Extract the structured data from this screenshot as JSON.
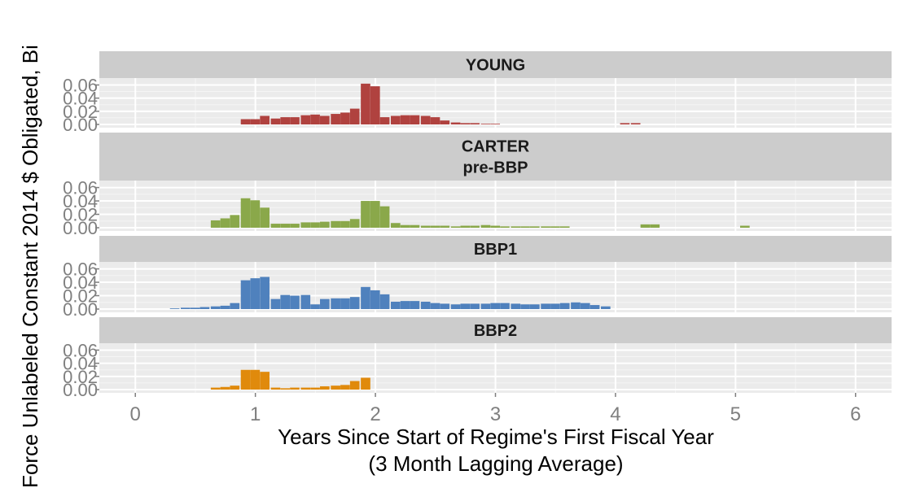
{
  "chart_data": {
    "type": "bar",
    "chart_kind": "faceted histogram",
    "xlabel": "Years Since Start of Regime's First Fiscal Year",
    "xlabel_line2": "(3 Month Lagging Average)",
    "ylabel": "Force Unlabeled Constant 2014 $ Obligated, Bi",
    "xlim": [
      -0.3,
      6.3
    ],
    "ylim": [
      0,
      0.068
    ],
    "x_ticks": [
      0,
      1,
      2,
      3,
      4,
      5,
      6
    ],
    "x_tick_labels": [
      "0",
      "1",
      "2",
      "3",
      "4",
      "5",
      "6"
    ],
    "y_ticks": [
      0,
      0.02,
      0.04,
      0.06
    ],
    "y_tick_labels": [
      "0.00",
      "0.02",
      "0.04",
      "0.06"
    ],
    "bin_width": 0.0833,
    "grid": true,
    "panel_background": "#ebebeb",
    "strip_background": "#cccccc",
    "facets": [
      {
        "strip": [
          "YOUNG"
        ],
        "color": "#b0423f",
        "bins": [
          [
            0.92,
            0.008
          ],
          [
            1.0,
            0.008
          ],
          [
            1.08,
            0.013
          ],
          [
            1.17,
            0.009
          ],
          [
            1.25,
            0.011
          ],
          [
            1.33,
            0.011
          ],
          [
            1.42,
            0.014
          ],
          [
            1.5,
            0.015
          ],
          [
            1.58,
            0.013
          ],
          [
            1.67,
            0.016
          ],
          [
            1.75,
            0.018
          ],
          [
            1.83,
            0.024
          ],
          [
            1.92,
            0.062
          ],
          [
            2.0,
            0.058
          ],
          [
            2.08,
            0.011
          ],
          [
            2.17,
            0.013
          ],
          [
            2.25,
            0.014
          ],
          [
            2.33,
            0.014
          ],
          [
            2.42,
            0.013
          ],
          [
            2.5,
            0.011
          ],
          [
            2.58,
            0.006
          ],
          [
            2.67,
            0.003
          ],
          [
            2.75,
            0.002
          ],
          [
            2.83,
            0.002
          ],
          [
            2.92,
            0.001
          ],
          [
            3.0,
            0.001
          ],
          [
            4.08,
            0.002
          ],
          [
            4.17,
            0.002
          ]
        ]
      },
      {
        "strip": [
          "CARTER",
          "pre-BBP"
        ],
        "color": "#8aa84a",
        "bins": [
          [
            0.67,
            0.011
          ],
          [
            0.75,
            0.014
          ],
          [
            0.83,
            0.019
          ],
          [
            0.92,
            0.044
          ],
          [
            1.0,
            0.041
          ],
          [
            1.08,
            0.03
          ],
          [
            1.17,
            0.006
          ],
          [
            1.25,
            0.006
          ],
          [
            1.33,
            0.006
          ],
          [
            1.42,
            0.008
          ],
          [
            1.5,
            0.008
          ],
          [
            1.58,
            0.009
          ],
          [
            1.67,
            0.01
          ],
          [
            1.75,
            0.01
          ],
          [
            1.83,
            0.013
          ],
          [
            1.92,
            0.04
          ],
          [
            2.0,
            0.04
          ],
          [
            2.08,
            0.032
          ],
          [
            2.17,
            0.007
          ],
          [
            2.25,
            0.004
          ],
          [
            2.33,
            0.004
          ],
          [
            2.42,
            0.003
          ],
          [
            2.5,
            0.003
          ],
          [
            2.58,
            0.003
          ],
          [
            2.67,
            0.002
          ],
          [
            2.75,
            0.003
          ],
          [
            2.83,
            0.003
          ],
          [
            2.92,
            0.004
          ],
          [
            3.0,
            0.003
          ],
          [
            3.08,
            0.002
          ],
          [
            3.17,
            0.002
          ],
          [
            3.25,
            0.002
          ],
          [
            3.33,
            0.002
          ],
          [
            3.42,
            0.002
          ],
          [
            3.5,
            0.002
          ],
          [
            3.58,
            0.002
          ],
          [
            4.25,
            0.005
          ],
          [
            4.33,
            0.005
          ],
          [
            5.08,
            0.003
          ]
        ]
      },
      {
        "strip": [
          "BBP1"
        ],
        "color": "#4f81bd",
        "bins": [
          [
            0.33,
            0.001
          ],
          [
            0.42,
            0.002
          ],
          [
            0.5,
            0.002
          ],
          [
            0.58,
            0.003
          ],
          [
            0.67,
            0.004
          ],
          [
            0.75,
            0.005
          ],
          [
            0.83,
            0.009
          ],
          [
            0.92,
            0.043
          ],
          [
            1.0,
            0.046
          ],
          [
            1.08,
            0.048
          ],
          [
            1.17,
            0.015
          ],
          [
            1.25,
            0.021
          ],
          [
            1.33,
            0.02
          ],
          [
            1.42,
            0.021
          ],
          [
            1.5,
            0.007
          ],
          [
            1.58,
            0.015
          ],
          [
            1.67,
            0.016
          ],
          [
            1.75,
            0.016
          ],
          [
            1.83,
            0.018
          ],
          [
            1.92,
            0.033
          ],
          [
            2.0,
            0.028
          ],
          [
            2.08,
            0.022
          ],
          [
            2.17,
            0.011
          ],
          [
            2.25,
            0.012
          ],
          [
            2.33,
            0.012
          ],
          [
            2.42,
            0.011
          ],
          [
            2.5,
            0.009
          ],
          [
            2.58,
            0.008
          ],
          [
            2.67,
            0.007
          ],
          [
            2.75,
            0.008
          ],
          [
            2.83,
            0.008
          ],
          [
            2.92,
            0.008
          ],
          [
            3.0,
            0.009
          ],
          [
            3.08,
            0.009
          ],
          [
            3.17,
            0.008
          ],
          [
            3.25,
            0.007
          ],
          [
            3.33,
            0.007
          ],
          [
            3.42,
            0.008
          ],
          [
            3.5,
            0.008
          ],
          [
            3.58,
            0.009
          ],
          [
            3.67,
            0.01
          ],
          [
            3.75,
            0.009
          ],
          [
            3.83,
            0.006
          ],
          [
            3.92,
            0.004
          ]
        ]
      },
      {
        "strip": [
          "BBP2"
        ],
        "color": "#e08a0c",
        "bins": [
          [
            0.67,
            0.003
          ],
          [
            0.75,
            0.004
          ],
          [
            0.83,
            0.006
          ],
          [
            0.92,
            0.03
          ],
          [
            1.0,
            0.03
          ],
          [
            1.08,
            0.027
          ],
          [
            1.17,
            0.003
          ],
          [
            1.25,
            0.002
          ],
          [
            1.33,
            0.003
          ],
          [
            1.42,
            0.003
          ],
          [
            1.5,
            0.003
          ],
          [
            1.58,
            0.005
          ],
          [
            1.67,
            0.006
          ],
          [
            1.75,
            0.007
          ],
          [
            1.83,
            0.013
          ],
          [
            1.92,
            0.018
          ]
        ]
      }
    ]
  }
}
